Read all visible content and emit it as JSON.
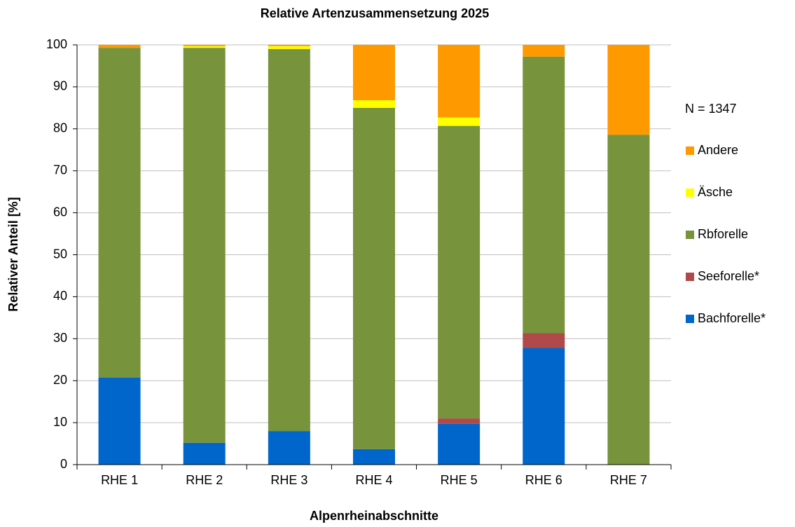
{
  "chart_data": {
    "type": "stacked_bar",
    "title": "Relative Artenzusammensetzung 2025",
    "x_label": "Alpenrheinabschnitte",
    "y_label": "Relativer Anteil [%]",
    "annotation": "N = 1347",
    "categories": [
      "RHE 1",
      "RHE 2",
      "RHE 3",
      "RHE 4",
      "RHE 5",
      "RHE 6",
      "RHE 7"
    ],
    "series": [
      {
        "name": "Bachforelle*",
        "color": "#0066cc",
        "values": [
          20.7,
          5.2,
          8.0,
          3.7,
          9.7,
          27.8,
          0
        ]
      },
      {
        "name": "Seeforelle*",
        "color": "#b04a4a",
        "values": [
          0,
          0,
          0,
          0,
          1.3,
          3.5,
          0
        ]
      },
      {
        "name": "Rbforelle",
        "color": "#77933c",
        "values": [
          78.6,
          94.1,
          91.0,
          81.3,
          69.7,
          65.9,
          78.6
        ]
      },
      {
        "name": "Äsche",
        "color": "#ffff00",
        "values": [
          0,
          0.4,
          0.7,
          1.8,
          2.0,
          0,
          0
        ]
      },
      {
        "name": "Andere",
        "color": "#ff9900",
        "values": [
          0.7,
          0.3,
          0.3,
          13.2,
          17.3,
          2.8,
          21.4
        ]
      }
    ],
    "ylim": [
      0,
      100
    ],
    "yticks": [
      0,
      10,
      20,
      30,
      40,
      50,
      60,
      70,
      80,
      90,
      100
    ],
    "grid": true,
    "legend": "right"
  }
}
